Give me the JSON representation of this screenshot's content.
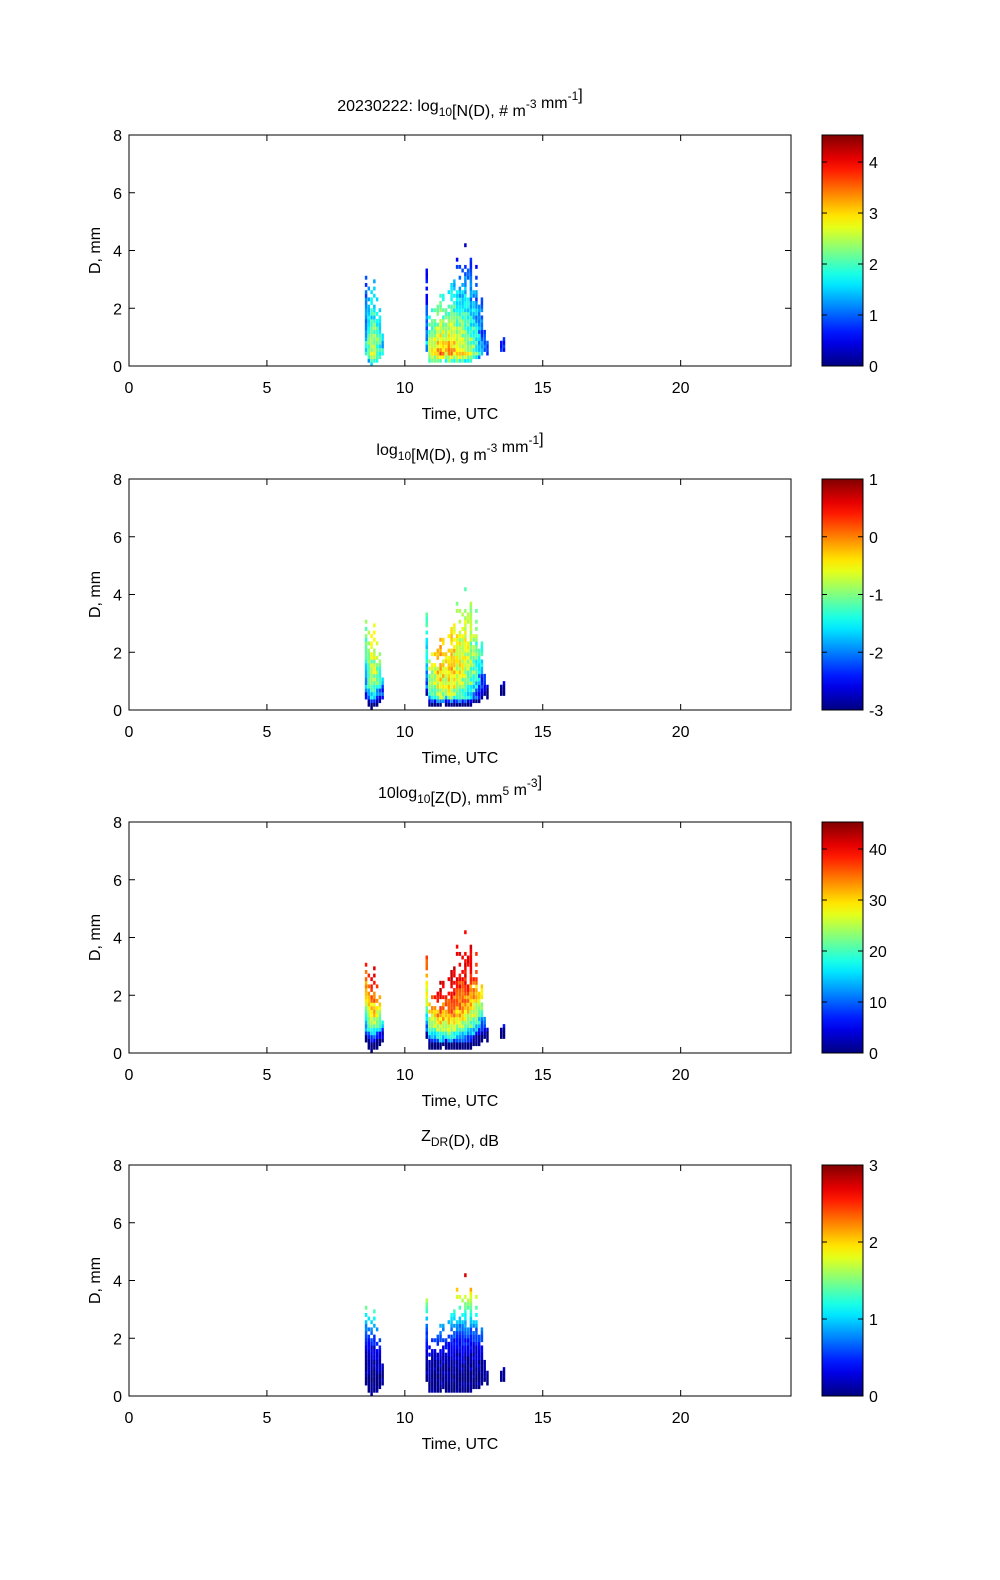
{
  "chart_data": {
    "type": "heatmap",
    "date": "20230222",
    "x_axis": {
      "label": "Time, UTC",
      "range": [
        0,
        24
      ],
      "ticks": [
        0,
        5,
        10,
        15,
        20
      ]
    },
    "y_axis": {
      "label": "D, mm",
      "range": [
        0,
        8
      ],
      "ticks": [
        0,
        2,
        4,
        6,
        8
      ]
    },
    "d_bin_mm": 0.125,
    "time_bin_h": 0.1,
    "columns": [
      {
        "t": 8.6,
        "dmin": 0.4,
        "dmax": 3.5,
        "intensity": 0.55
      },
      {
        "t": 8.7,
        "dmin": 0.2,
        "dmax": 3.0,
        "intensity": 0.7
      },
      {
        "t": 8.8,
        "dmin": 0.1,
        "dmax": 2.6,
        "intensity": 0.8
      },
      {
        "t": 8.9,
        "dmin": 0.15,
        "dmax": 3.0,
        "intensity": 0.8
      },
      {
        "t": 9.0,
        "dmin": 0.2,
        "dmax": 2.3,
        "intensity": 0.7
      },
      {
        "t": 9.1,
        "dmin": 0.3,
        "dmax": 2.0,
        "intensity": 0.6
      },
      {
        "t": 9.2,
        "dmin": 0.4,
        "dmax": 1.5,
        "intensity": 0.5
      },
      {
        "t": 10.8,
        "dmin": 0.6,
        "dmax": 3.5,
        "intensity": 0.45
      },
      {
        "t": 10.9,
        "dmin": 0.2,
        "dmax": 1.8,
        "intensity": 0.75
      },
      {
        "t": 11.0,
        "dmin": 0.2,
        "dmax": 2.1,
        "intensity": 0.85
      },
      {
        "t": 11.1,
        "dmin": 0.2,
        "dmax": 2.2,
        "intensity": 0.9
      },
      {
        "t": 11.2,
        "dmin": 0.2,
        "dmax": 2.2,
        "intensity": 0.95
      },
      {
        "t": 11.3,
        "dmin": 0.2,
        "dmax": 2.4,
        "intensity": 1.0
      },
      {
        "t": 11.4,
        "dmin": 0.25,
        "dmax": 2.5,
        "intensity": 0.95
      },
      {
        "t": 11.5,
        "dmin": 0.2,
        "dmax": 2.1,
        "intensity": 0.9
      },
      {
        "t": 11.6,
        "dmin": 0.2,
        "dmax": 2.7,
        "intensity": 1.0
      },
      {
        "t": 11.7,
        "dmin": 0.2,
        "dmax": 2.9,
        "intensity": 1.0
      },
      {
        "t": 11.8,
        "dmin": 0.2,
        "dmax": 3.3,
        "intensity": 0.95
      },
      {
        "t": 11.9,
        "dmin": 0.2,
        "dmax": 3.7,
        "intensity": 0.9
      },
      {
        "t": 12.0,
        "dmin": 0.2,
        "dmax": 3.9,
        "intensity": 0.9
      },
      {
        "t": 12.1,
        "dmin": 0.2,
        "dmax": 3.6,
        "intensity": 0.85
      },
      {
        "t": 12.2,
        "dmin": 0.2,
        "dmax": 4.3,
        "intensity": 0.85
      },
      {
        "t": 12.3,
        "dmin": 0.2,
        "dmax": 3.3,
        "intensity": 0.8
      },
      {
        "t": 12.4,
        "dmin": 0.2,
        "dmax": 3.8,
        "intensity": 0.75
      },
      {
        "t": 12.5,
        "dmin": 0.25,
        "dmax": 2.6,
        "intensity": 0.7
      },
      {
        "t": 12.6,
        "dmin": 0.3,
        "dmax": 3.5,
        "intensity": 0.6
      },
      {
        "t": 12.7,
        "dmin": 0.3,
        "dmax": 2.3,
        "intensity": 0.5
      },
      {
        "t": 12.8,
        "dmin": 0.4,
        "dmax": 2.3,
        "intensity": 0.4
      },
      {
        "t": 12.9,
        "dmin": 0.5,
        "dmax": 1.5,
        "intensity": 0.3
      },
      {
        "t": 13.0,
        "dmin": 0.4,
        "dmax": 0.8,
        "intensity": 0.25
      },
      {
        "t": 13.5,
        "dmin": 0.6,
        "dmax": 1.0,
        "intensity": 0.2
      },
      {
        "t": 13.6,
        "dmin": 0.6,
        "dmax": 0.9,
        "intensity": 0.2
      }
    ],
    "panels": [
      {
        "id": "nd",
        "title": [
          {
            "t": "20230222: log"
          },
          {
            "t": "10",
            "s": "sub"
          },
          {
            "t": "[N(D), # m"
          },
          {
            "t": "-3",
            "s": "sup"
          },
          {
            "t": " mm"
          },
          {
            "t": "-1",
            "s": "sup"
          },
          {
            "t": "]"
          }
        ],
        "colorbar": {
          "range": [
            0,
            4.53
          ],
          "ticks": [
            "0",
            "1",
            "2",
            "3",
            "4"
          ],
          "tick_values": [
            0,
            1,
            2,
            3,
            4
          ]
        }
      },
      {
        "id": "md",
        "title": [
          {
            "t": "log"
          },
          {
            "t": "10",
            "s": "sub"
          },
          {
            "t": "[M(D), g m"
          },
          {
            "t": "-3",
            "s": "sup"
          },
          {
            "t": " mm"
          },
          {
            "t": "-1",
            "s": "sup"
          },
          {
            "t": "]"
          }
        ],
        "colorbar": {
          "range": [
            -3,
            1
          ],
          "ticks": [
            "-3",
            "-2",
            "-1",
            "0",
            "1"
          ],
          "tick_values": [
            -3,
            -2,
            -1,
            0,
            1
          ]
        }
      },
      {
        "id": "zd",
        "title": [
          {
            "t": "10log"
          },
          {
            "t": "10",
            "s": "sub"
          },
          {
            "t": "[Z(D),  mm"
          },
          {
            "t": "5",
            "s": "sup"
          },
          {
            "t": " m"
          },
          {
            "t": "-3",
            "s": "sup"
          },
          {
            "t": "]"
          }
        ],
        "colorbar": {
          "range": [
            0,
            45.3
          ],
          "ticks": [
            "0",
            "10",
            "20",
            "30",
            "40"
          ],
          "tick_values": [
            0,
            10,
            20,
            30,
            40
          ]
        }
      },
      {
        "id": "zdr",
        "title": [
          {
            "t": "Z"
          },
          {
            "t": "DR",
            "s": "sub"
          },
          {
            "t": "(D), dB"
          }
        ],
        "colorbar": {
          "range": [
            0,
            3
          ],
          "ticks": [
            "0",
            "1",
            "2",
            "3"
          ],
          "tick_values": [
            0,
            1,
            2,
            3
          ]
        }
      }
    ],
    "grid": false,
    "colormap": "jet"
  }
}
